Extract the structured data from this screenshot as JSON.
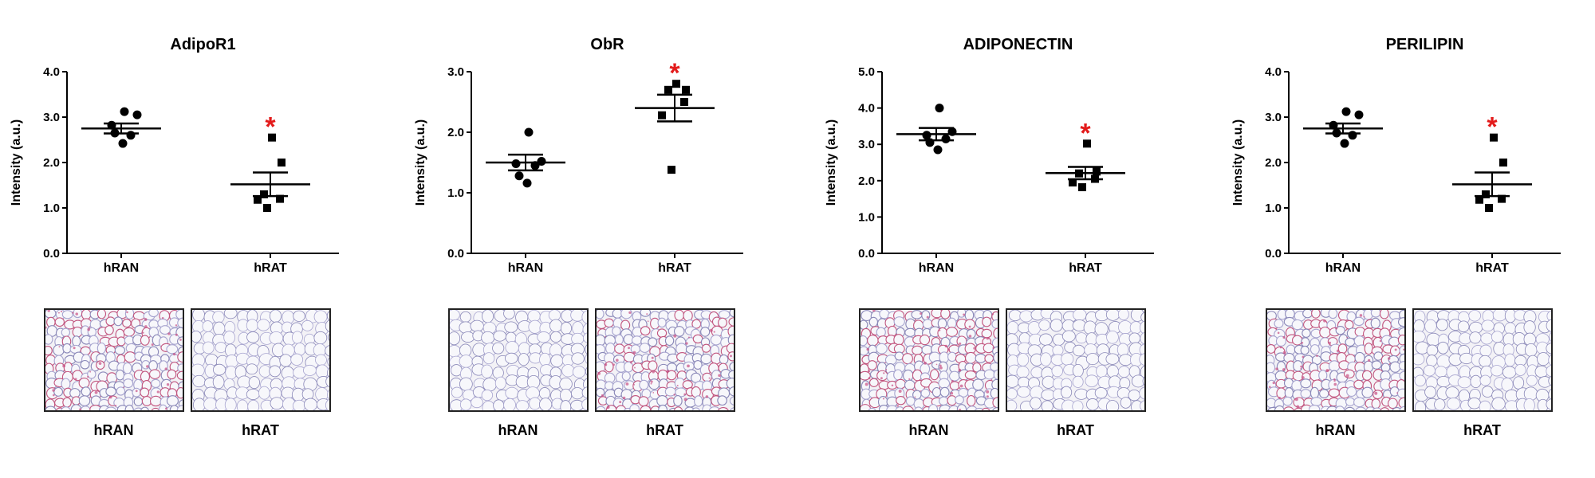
{
  "chart_data": [
    {
      "type": "scatter",
      "title": "AdipoR1",
      "ylabel": "Intensity (a.u.)",
      "categories": [
        "hRAN",
        "hRAT"
      ],
      "ylim": [
        0,
        4
      ],
      "yticks": [
        "0.0",
        "1.0",
        "2.0",
        "3.0",
        "4.0"
      ],
      "series": [
        {
          "category": "hRAN",
          "marker": "circle",
          "values": [
            3.12,
            3.05,
            2.82,
            2.6,
            2.65,
            2.42
          ],
          "mean": 2.75,
          "sem": 0.11
        },
        {
          "category": "hRAT",
          "marker": "square",
          "values": [
            2.55,
            2.0,
            1.3,
            1.2,
            1.18,
            1.0
          ],
          "mean": 1.52,
          "sem": 0.26
        }
      ],
      "significance": {
        "category": "hRAT",
        "label": "*",
        "color": "#e31b1b"
      },
      "histology": [
        {
          "label": "hRAN",
          "stain": "dense"
        },
        {
          "label": "hRAT",
          "stain": "light"
        }
      ]
    },
    {
      "type": "scatter",
      "title": "ObR",
      "ylabel": "Intensity (a.u.)",
      "categories": [
        "hRAN",
        "hRAT"
      ],
      "ylim": [
        0,
        3
      ],
      "yticks": [
        "0.0",
        "1.0",
        "2.0",
        "3.0"
      ],
      "series": [
        {
          "category": "hRAN",
          "marker": "circle",
          "values": [
            2.0,
            1.52,
            1.48,
            1.45,
            1.28,
            1.16
          ],
          "mean": 1.5,
          "sem": 0.13
        },
        {
          "category": "hRAT",
          "marker": "square",
          "values": [
            2.8,
            2.7,
            2.7,
            2.5,
            2.28,
            1.38
          ],
          "mean": 2.4,
          "sem": 0.22
        }
      ],
      "significance": {
        "category": "hRAT",
        "label": "*",
        "color": "#e31b1b"
      },
      "histology": [
        {
          "label": "hRAN",
          "stain": "light"
        },
        {
          "label": "hRAT",
          "stain": "dense"
        }
      ]
    },
    {
      "type": "scatter",
      "title": "ADIPONECTIN",
      "ylabel": "Intensity (a.u.)",
      "categories": [
        "hRAN",
        "hRAT"
      ],
      "ylim": [
        0,
        5
      ],
      "yticks": [
        "0.0",
        "1.0",
        "2.0",
        "3.0",
        "4.0",
        "5.0"
      ],
      "series": [
        {
          "category": "hRAN",
          "marker": "circle",
          "values": [
            4.0,
            3.35,
            3.25,
            3.15,
            3.05,
            2.85
          ],
          "mean": 3.28,
          "sem": 0.17
        },
        {
          "category": "hRAT",
          "marker": "square",
          "values": [
            3.02,
            2.25,
            2.2,
            2.05,
            1.95,
            1.82
          ],
          "mean": 2.21,
          "sem": 0.17
        }
      ],
      "significance": {
        "category": "hRAT",
        "label": "*",
        "color": "#e31b1b"
      },
      "histology": [
        {
          "label": "hRAN",
          "stain": "dense"
        },
        {
          "label": "hRAT",
          "stain": "light"
        }
      ]
    },
    {
      "type": "scatter",
      "title": "PERILIPIN",
      "ylabel": "Intensity (a.u.)",
      "categories": [
        "hRAN",
        "hRAT"
      ],
      "ylim": [
        0,
        4
      ],
      "yticks": [
        "0.0",
        "1.0",
        "2.0",
        "3.0",
        "4.0"
      ],
      "series": [
        {
          "category": "hRAN",
          "marker": "circle",
          "values": [
            3.12,
            3.05,
            2.82,
            2.6,
            2.65,
            2.42
          ],
          "mean": 2.75,
          "sem": 0.11
        },
        {
          "category": "hRAT",
          "marker": "square",
          "values": [
            2.55,
            2.0,
            1.3,
            1.2,
            1.18,
            1.0
          ],
          "mean": 1.52,
          "sem": 0.26
        }
      ],
      "significance": {
        "category": "hRAT",
        "label": "*",
        "color": "#e31b1b"
      },
      "histology": [
        {
          "label": "hRAN",
          "stain": "dense"
        },
        {
          "label": "hRAT",
          "stain": "light"
        }
      ]
    }
  ]
}
